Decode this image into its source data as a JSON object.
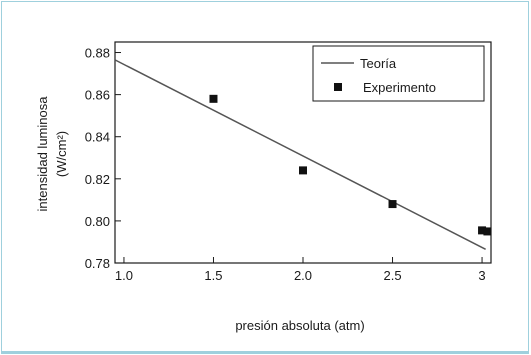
{
  "chart_data": {
    "type": "scatter",
    "xlabel": "presión absoluta (atm)",
    "ylabel_line1": "intensidad luminosa",
    "ylabel_line2": "(W/cm²)",
    "xlim": [
      0.95,
      3.05
    ],
    "ylim": [
      0.78,
      0.885
    ],
    "x_ticks": [
      1.0,
      1.5,
      2.0,
      2.5,
      3.0
    ],
    "x_tick_labels": [
      "1.0",
      "1.5",
      "2.0",
      "2.5",
      "3"
    ],
    "y_ticks": [
      0.78,
      0.8,
      0.82,
      0.84,
      0.86,
      0.88
    ],
    "y_tick_labels": [
      "0.78",
      "0.80",
      "0.82",
      "0.84",
      "0.86",
      "0.88"
    ],
    "grid": false,
    "legend_position": "top-right",
    "series": [
      {
        "name": "Teoría",
        "kind": "line",
        "color": "#555555",
        "x": [
          0.95,
          3.02
        ],
        "y": [
          0.8765,
          0.7865
        ]
      },
      {
        "name": "Experimento",
        "kind": "scatter",
        "marker": "square",
        "color": "#111111",
        "x": [
          1.5,
          2.0,
          2.5,
          3.0,
          3.03
        ],
        "y": [
          0.858,
          0.824,
          0.808,
          0.7955,
          0.795
        ]
      }
    ]
  }
}
